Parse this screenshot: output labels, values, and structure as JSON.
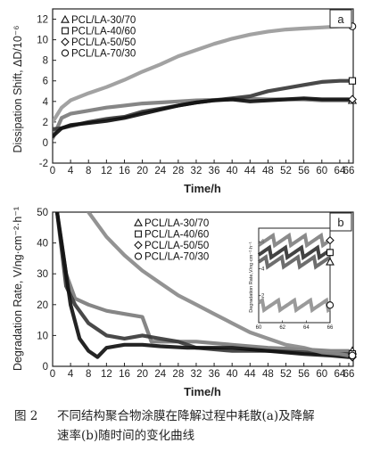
{
  "chart_data": [
    {
      "panel": "a",
      "type": "line",
      "ylabel": "Dissipation Shift, ΔD/10⁻⁶",
      "xlabel": "Time/h",
      "xticks": [
        "0",
        "4",
        "8",
        "12",
        "16",
        "20",
        "24",
        "28",
        "32",
        "36",
        "40",
        "44",
        "48",
        "52",
        "56",
        "60",
        "64",
        "66"
      ],
      "yticks": [
        "-2",
        "0",
        "2",
        "4",
        "6",
        "8",
        "10",
        "12"
      ],
      "xlim": [
        0,
        67
      ],
      "ylim": [
        -2,
        13
      ],
      "legend_position": "top-left",
      "series": [
        {
          "name": "PCL/LA-30/70",
          "color": "#7c7c7c",
          "marker": "triangle",
          "x": [
            0,
            2,
            4,
            8,
            12,
            16,
            20,
            24,
            28,
            32,
            36,
            40,
            44,
            48,
            52,
            56,
            60,
            64,
            66
          ],
          "y": [
            0.4,
            2.4,
            2.8,
            3.1,
            3.4,
            3.6,
            3.8,
            3.9,
            4.0,
            4.1,
            4.15,
            4.2,
            4.25,
            4.2,
            4.2,
            4.2,
            4.1,
            4.1,
            4.1
          ]
        },
        {
          "name": "PCL/LA-40/60",
          "color": "#3a3a3a",
          "marker": "square",
          "x": [
            0,
            2,
            4,
            8,
            12,
            16,
            20,
            24,
            28,
            32,
            36,
            40,
            44,
            48,
            52,
            56,
            60,
            64,
            66
          ],
          "y": [
            1.3,
            1.4,
            1.6,
            2.0,
            2.3,
            2.5,
            3.0,
            3.3,
            3.6,
            3.9,
            4.1,
            4.3,
            4.5,
            5.0,
            5.3,
            5.6,
            5.9,
            6.0,
            6.0
          ]
        },
        {
          "name": "PCL/LA-50/50",
          "color": "#111111",
          "marker": "diamond",
          "x": [
            0,
            2,
            4,
            8,
            12,
            16,
            20,
            24,
            28,
            32,
            36,
            40,
            44,
            48,
            52,
            56,
            60,
            64,
            66
          ],
          "y": [
            0.6,
            1.4,
            1.7,
            1.9,
            2.1,
            2.4,
            2.8,
            3.2,
            3.6,
            3.9,
            4.1,
            4.2,
            4.0,
            4.1,
            4.2,
            4.3,
            4.2,
            4.2,
            4.2
          ]
        },
        {
          "name": "PCL/LA-70/30",
          "color": "#9a9a9a",
          "marker": "circle",
          "x": [
            0,
            2,
            4,
            8,
            12,
            16,
            20,
            24,
            28,
            32,
            36,
            40,
            44,
            48,
            52,
            56,
            60,
            64,
            66
          ],
          "y": [
            2.0,
            3.4,
            4.1,
            4.8,
            5.4,
            6.1,
            6.9,
            7.6,
            8.4,
            9.0,
            9.6,
            10.1,
            10.5,
            10.8,
            11.0,
            11.1,
            11.2,
            11.3,
            11.3
          ]
        }
      ]
    },
    {
      "panel": "b",
      "type": "line",
      "ylabel": "Degradation Rate, V/ng·cm⁻²·h⁻¹",
      "xlabel": "Time/h",
      "xticks": [
        "0",
        "4",
        "8",
        "12",
        "16",
        "20",
        "24",
        "28",
        "32",
        "36",
        "40",
        "44",
        "48",
        "52",
        "56",
        "60",
        "64",
        "66"
      ],
      "yticks": [
        "0",
        "10",
        "20",
        "30",
        "40",
        "50"
      ],
      "xlim": [
        0,
        67
      ],
      "ylim": [
        0,
        50
      ],
      "legend_position": "top-right",
      "series": [
        {
          "name": "PCL/LA-30/70",
          "color": "#7c7c7c",
          "marker": "triangle",
          "x": [
            1,
            3,
            5,
            8,
            12,
            16,
            20,
            22,
            26,
            32,
            40,
            48,
            56,
            62,
            66
          ],
          "y": [
            50,
            30,
            22,
            20,
            18,
            17,
            16,
            8,
            8,
            8,
            7,
            6,
            5.5,
            5,
            5
          ]
        },
        {
          "name": "PCL/LA-40/60",
          "color": "#3a3a3a",
          "marker": "square",
          "x": [
            1,
            3,
            5,
            8,
            12,
            16,
            20,
            24,
            28,
            32,
            40,
            48,
            56,
            62,
            66
          ],
          "y": [
            50,
            26,
            20,
            14,
            10,
            9,
            10,
            9,
            8,
            6,
            5,
            5,
            4.5,
            4,
            4
          ]
        },
        {
          "name": "PCL/LA-50/50",
          "color": "#111111",
          "marker": "diamond",
          "x": [
            1,
            2,
            4,
            6,
            8,
            10,
            12,
            16,
            20,
            24,
            30,
            40,
            48,
            56,
            62,
            66
          ],
          "y": [
            50,
            40,
            20,
            9,
            5,
            3,
            6,
            7,
            7,
            6.5,
            6,
            6,
            5,
            4,
            3.5,
            3
          ]
        },
        {
          "name": "PCL/LA-70/30",
          "color": "#8a8a8a",
          "marker": "circle",
          "x": [
            8,
            12,
            16,
            20,
            24,
            28,
            32,
            36,
            40,
            44,
            48,
            52,
            56,
            60,
            64,
            66
          ],
          "y": [
            50,
            42,
            36,
            31,
            27,
            23,
            20,
            17,
            14,
            11,
            9,
            7,
            6,
            4.5,
            4,
            3.5
          ]
        }
      ],
      "inset": {
        "ylabel": "Degradation Rate,V/ng·cm⁻²·h⁻¹",
        "xticks": [
          "60",
          "62",
          "64",
          "66"
        ],
        "yticks": [
          "2",
          "4",
          "6"
        ],
        "xlim": [
          60,
          66
        ],
        "ylim": [
          0,
          7
        ]
      }
    }
  ],
  "panel_tags": {
    "a": "a",
    "b": "b"
  },
  "caption": {
    "figure_number": "图 2",
    "line1": "不同结构聚合物涂膜在降解过程中耗散(a)及降解",
    "line2": "速率(b)随时间的变化曲线"
  }
}
